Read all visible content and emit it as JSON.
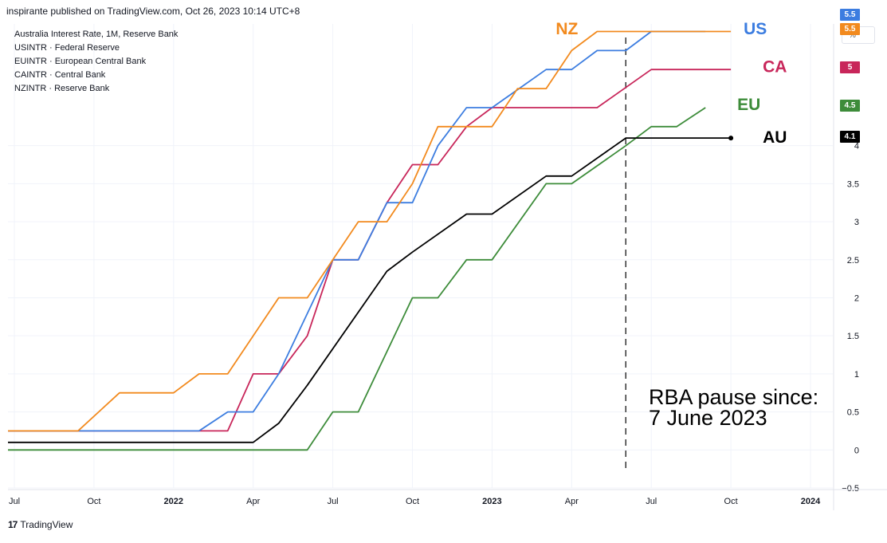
{
  "header": {
    "text": "inspirante published on TradingView.com, Oct 26, 2023 10:14 UTC+8"
  },
  "legend": [
    "Australia Interest Rate, 1M, Reserve Bank",
    "USINTR · Federal Reserve",
    "EUINTR · European Central Bank",
    "CAINTR · Central Bank",
    "NZINTR · Reserve Bank"
  ],
  "unit_button": "%",
  "footer": {
    "brand": "TradingView",
    "logo": "17"
  },
  "annotation": {
    "line1": "RBA pause since:",
    "line2": "7 June 2023"
  },
  "chart_data": {
    "type": "line",
    "title": "Australia Interest Rate, 1M, Reserve Bank",
    "xlabel": "",
    "ylabel": "%",
    "x_ticks": [
      {
        "label": "Jul",
        "t": 2021.5
      },
      {
        "label": "Oct",
        "t": 2021.75
      },
      {
        "label": "2022",
        "t": 2022.0
      },
      {
        "label": "Apr",
        "t": 2022.25
      },
      {
        "label": "Jul",
        "t": 2022.5
      },
      {
        "label": "Oct",
        "t": 2022.75
      },
      {
        "label": "2023",
        "t": 2023.0
      },
      {
        "label": "Apr",
        "t": 2023.25
      },
      {
        "label": "Jul",
        "t": 2023.5
      },
      {
        "label": "Oct",
        "t": 2023.75
      },
      {
        "label": "2024",
        "t": 2024.0
      }
    ],
    "y_ticks": [
      "4",
      "3.5",
      "3",
      "2.5",
      "2",
      "1.5",
      "1",
      "0.5",
      "0",
      "−0.5"
    ],
    "y_tick_values": [
      4,
      3.5,
      3,
      2.5,
      2,
      1.5,
      1,
      0.5,
      0,
      -0.5
    ],
    "xlim": [
      2021.48,
      2024.07
    ],
    "ylim": [
      -0.5,
      5.6
    ],
    "pause_marker_t": 2023.42,
    "series": [
      {
        "name": "NZ",
        "color": "#f28a1e",
        "end_value": "5.5",
        "points": [
          [
            2021.48,
            0.25
          ],
          [
            2021.7,
            0.25
          ],
          [
            2021.83,
            0.75
          ],
          [
            2022.0,
            0.75
          ],
          [
            2022.08,
            1.0
          ],
          [
            2022.17,
            1.0
          ],
          [
            2022.33,
            2.0
          ],
          [
            2022.42,
            2.0
          ],
          [
            2022.5,
            2.5
          ],
          [
            2022.58,
            3.0
          ],
          [
            2022.67,
            3.0
          ],
          [
            2022.75,
            3.5
          ],
          [
            2022.83,
            4.25
          ],
          [
            2022.92,
            4.25
          ],
          [
            2023.0,
            4.25
          ],
          [
            2023.08,
            4.75
          ],
          [
            2023.17,
            4.75
          ],
          [
            2023.25,
            5.25
          ],
          [
            2023.33,
            5.5
          ],
          [
            2023.75,
            5.5
          ]
        ]
      },
      {
        "name": "US",
        "color": "#3c7de0",
        "end_value": "5.5",
        "points": [
          [
            2021.48,
            0.25
          ],
          [
            2022.08,
            0.25
          ],
          [
            2022.17,
            0.5
          ],
          [
            2022.25,
            0.5
          ],
          [
            2022.33,
            1.0
          ],
          [
            2022.5,
            2.5
          ],
          [
            2022.58,
            2.5
          ],
          [
            2022.67,
            3.25
          ],
          [
            2022.75,
            3.25
          ],
          [
            2022.83,
            4.0
          ],
          [
            2022.92,
            4.5
          ],
          [
            2023.0,
            4.5
          ],
          [
            2023.17,
            5.0
          ],
          [
            2023.25,
            5.0
          ],
          [
            2023.33,
            5.25
          ],
          [
            2023.42,
            5.25
          ],
          [
            2023.5,
            5.5
          ],
          [
            2023.67,
            5.5
          ]
        ]
      },
      {
        "name": "CA",
        "color": "#c8265a",
        "end_value": "5",
        "points": [
          [
            2021.48,
            0.25
          ],
          [
            2022.17,
            0.25
          ],
          [
            2022.25,
            1.0
          ],
          [
            2022.33,
            1.0
          ],
          [
            2022.42,
            1.5
          ],
          [
            2022.5,
            2.5
          ],
          [
            2022.58,
            2.5
          ],
          [
            2022.67,
            3.25
          ],
          [
            2022.75,
            3.75
          ],
          [
            2022.83,
            3.75
          ],
          [
            2022.92,
            4.25
          ],
          [
            2023.0,
            4.5
          ],
          [
            2023.08,
            4.5
          ],
          [
            2023.33,
            4.5
          ],
          [
            2023.5,
            5.0
          ],
          [
            2023.75,
            5.0
          ]
        ]
      },
      {
        "name": "EU",
        "color": "#3d8c3a",
        "end_value": "4.5",
        "points": [
          [
            2021.48,
            0.0
          ],
          [
            2022.42,
            0.0
          ],
          [
            2022.5,
            0.5
          ],
          [
            2022.58,
            0.5
          ],
          [
            2022.75,
            2.0
          ],
          [
            2022.83,
            2.0
          ],
          [
            2022.92,
            2.5
          ],
          [
            2023.0,
            2.5
          ],
          [
            2023.17,
            3.5
          ],
          [
            2023.25,
            3.5
          ],
          [
            2023.42,
            4.0
          ],
          [
            2023.5,
            4.25
          ],
          [
            2023.58,
            4.25
          ],
          [
            2023.67,
            4.5
          ]
        ]
      },
      {
        "name": "AU",
        "color": "#000000",
        "end_value": "4.1",
        "points": [
          [
            2021.48,
            0.1
          ],
          [
            2022.25,
            0.1
          ],
          [
            2022.33,
            0.35
          ],
          [
            2022.42,
            0.85
          ],
          [
            2022.67,
            2.35
          ],
          [
            2022.75,
            2.6
          ],
          [
            2022.92,
            3.1
          ],
          [
            2023.0,
            3.1
          ],
          [
            2023.17,
            3.6
          ],
          [
            2023.25,
            3.6
          ],
          [
            2023.42,
            4.1
          ],
          [
            2023.75,
            4.1
          ]
        ]
      }
    ],
    "labels": [
      {
        "name": "NZ",
        "t": 2023.2,
        "v": 5.55
      },
      {
        "name": "US",
        "t": 2023.79,
        "v": 5.55
      },
      {
        "name": "CA",
        "t": 2023.85,
        "v": 5.05
      },
      {
        "name": "EU",
        "t": 2023.77,
        "v": 4.55
      },
      {
        "name": "AU",
        "t": 2023.85,
        "v": 4.12
      }
    ],
    "badges": [
      {
        "value": "5.5",
        "color": "#3c7de0",
        "v": 5.72
      },
      {
        "value": "5.5",
        "color": "#f28a1e",
        "v": 5.53
      },
      {
        "value": "5",
        "color": "#c8265a",
        "v": 5.03
      },
      {
        "value": "4.5",
        "color": "#3d8c3a",
        "v": 4.53
      },
      {
        "value": "4.1",
        "color": "#000000",
        "v": 4.12
      }
    ]
  }
}
